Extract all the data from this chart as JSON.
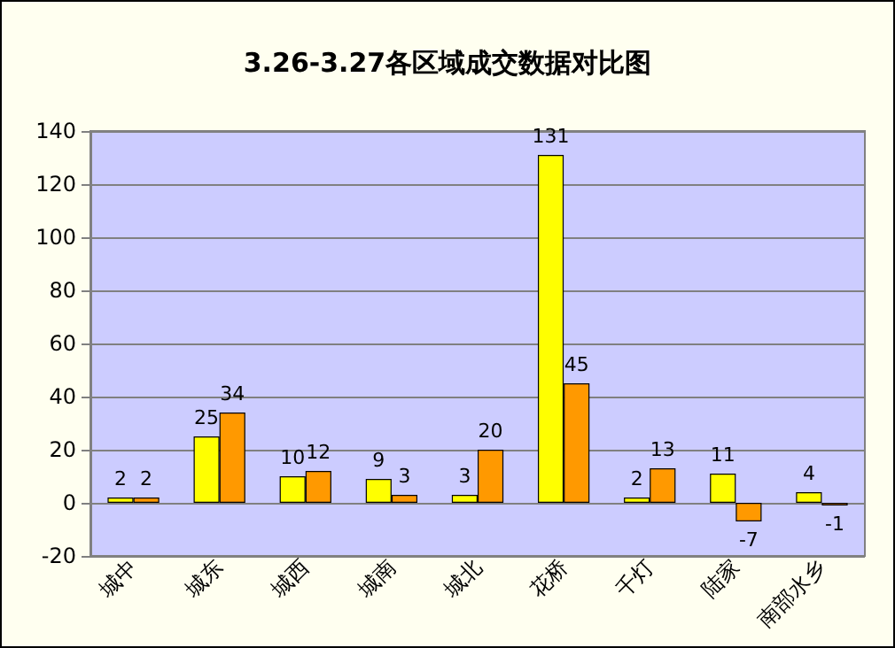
{
  "chart_data": {
    "type": "bar",
    "title": "3.26-3.27各区域成交数据对比图",
    "categories": [
      "城中",
      "城东",
      "城西",
      "城南",
      "城北",
      "花桥",
      "千灯",
      "陆家",
      "南部水乡"
    ],
    "series": [
      {
        "color": "#ffff00",
        "values": [
          2,
          25,
          10,
          9,
          3,
          131,
          2,
          11,
          4
        ]
      },
      {
        "color": "#ff9900",
        "values": [
          2,
          34,
          12,
          3,
          20,
          45,
          13,
          -7,
          -1
        ]
      }
    ],
    "ylim": [
      -20,
      140
    ],
    "yticks": [
      -20,
      0,
      20,
      40,
      60,
      80,
      100,
      120,
      140
    ],
    "grid": "y",
    "data_labels": true
  }
}
